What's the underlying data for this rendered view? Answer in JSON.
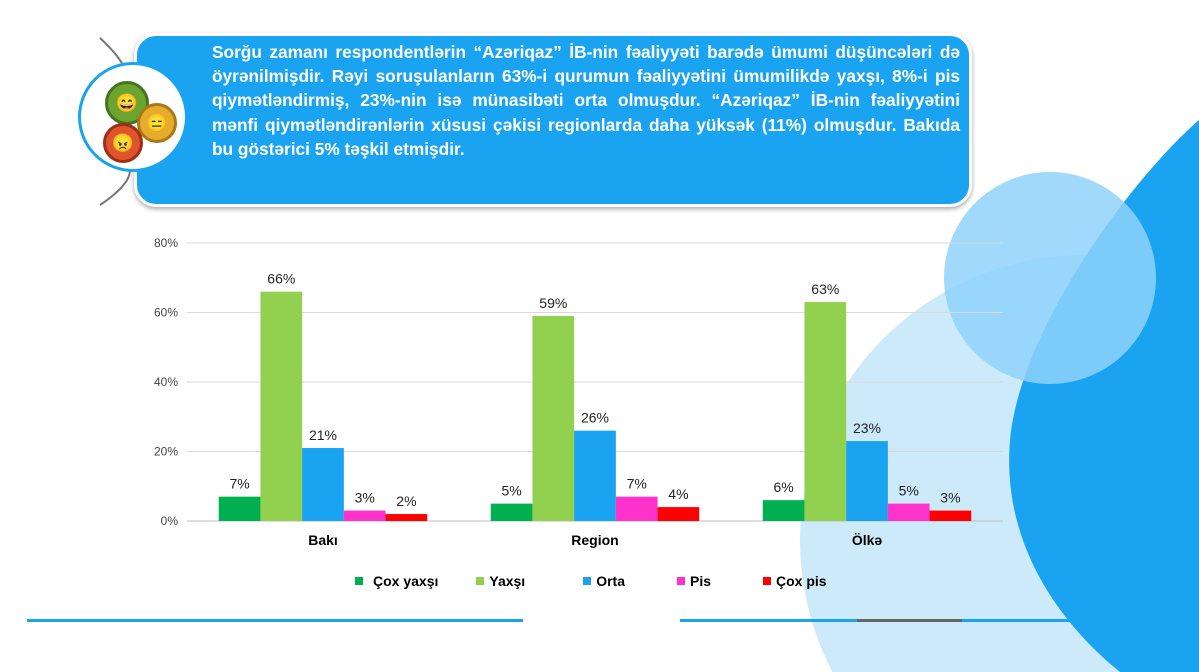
{
  "callout": {
    "text": "Sorğu zamanı respondentlərin “Azəriqaz” İB-nin fəaliyyəti barədə ümumi düşüncələri də öyrənilmişdir. Rəyi soruşulanların 63%-i qurumun fəaliyyətini ümumilikdə yaxşı, 8%-i pis qiymətləndirmiş, 23%-nin isə münasibəti orta olmuşdur. “Azəriqaz” İB-nin fəaliyyətini mənfi qiymətləndirənlərin xüsusi çəkisi regionlarda daha yüksək (11%) olmuşdur. Bakıda bu göstərici 5% təşkil etmişdir."
  },
  "chart_data": {
    "type": "bar",
    "title": "",
    "xlabel": "",
    "ylabel": "",
    "ylim": [
      0,
      80
    ],
    "yticks": [
      "0%",
      "20%",
      "40%",
      "60%",
      "80%"
    ],
    "ytick_values": [
      0,
      20,
      40,
      60,
      80
    ],
    "grid": true,
    "legend_position": "bottom",
    "categories": [
      "Bakı",
      "Region",
      "Ölkə"
    ],
    "series": [
      {
        "name": "Çox yaxşı",
        "color": "#00b050",
        "values": [
          7,
          5,
          6
        ]
      },
      {
        "name": "Yaxşı",
        "color": "#92d050",
        "values": [
          66,
          59,
          63
        ]
      },
      {
        "name": "Orta",
        "color": "#1aa3f0",
        "values": [
          21,
          26,
          23
        ]
      },
      {
        "name": "Pis",
        "color": "#ff33cc",
        "values": [
          3,
          7,
          5
        ]
      },
      {
        "name": "Çox pis",
        "color": "#ff0000",
        "values": [
          2,
          4,
          3
        ]
      }
    ]
  }
}
